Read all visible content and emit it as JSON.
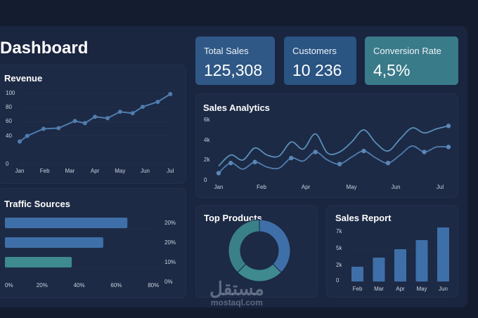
{
  "header": {
    "title": "Dashboard"
  },
  "kpis": [
    {
      "label": "Total Sales",
      "value": "125,308",
      "color": "#2f5886"
    },
    {
      "label": "Customers",
      "value": "10 236",
      "color": "#2a5482"
    },
    {
      "label": "Conversion Rate",
      "value": "4,5%",
      "color": "#3a7b8a"
    }
  ],
  "revenue": {
    "title": "Revenue",
    "chart_data": {
      "type": "line",
      "yticks": [
        "100",
        "80",
        "60",
        "40",
        "0"
      ],
      "xticks": [
        "Jan",
        "Feb",
        "Mar",
        "Apr",
        "May",
        "Jun",
        "Jul"
      ],
      "ylim": [
        0,
        100
      ],
      "x": [
        0,
        0.3,
        0.95,
        1.55,
        2.2,
        2.6,
        3.0,
        3.5,
        4.0,
        4.5,
        4.9,
        5.5,
        6.0
      ],
      "values": [
        32,
        40,
        50,
        51,
        61,
        58,
        67,
        65,
        74,
        72,
        81,
        88,
        99
      ],
      "color": "#4f7db0"
    }
  },
  "analytics": {
    "title": "Sales Analytics",
    "chart_data": {
      "type": "line",
      "yticks": [
        "6k",
        "4k",
        "2k",
        "0"
      ],
      "xticks": [
        "Jan",
        "Feb",
        "Apr",
        "May",
        "Jun",
        "Jul"
      ],
      "ylim": [
        0,
        6
      ],
      "series": [
        {
          "values": [
            1.5,
            2.6,
            2.1,
            3.3,
            2.6,
            2.5,
            3.9,
            3.2,
            4.7,
            2.8,
            2.9,
            3.9,
            5.1,
            3.8,
            3.0,
            4.2,
            5.3,
            4.8,
            5.2,
            5.5
          ],
          "color": "#5a8fb8"
        },
        {
          "values": [
            0.8,
            1.8,
            1.2,
            1.9,
            1.4,
            1.3,
            2.3,
            2.0,
            2.9,
            2.1,
            1.7,
            2.4,
            3.0,
            2.3,
            1.8,
            2.6,
            3.5,
            2.9,
            3.4,
            3.4
          ],
          "color": "#4f7db0"
        }
      ]
    }
  },
  "traffic": {
    "title": "Traffic Sources",
    "chart_data": {
      "type": "bar",
      "orientation": "horizontal",
      "values": [
        66,
        53,
        36
      ],
      "colors": [
        "#3f6fa8",
        "#3f6fa8",
        "#3e8a8e"
      ],
      "right_labels": [
        "20%",
        "20%",
        "10%",
        "0%"
      ],
      "xticks": [
        "0%",
        "20%",
        "40%",
        "60%",
        "80%"
      ],
      "xlim": [
        0,
        80
      ]
    }
  },
  "products": {
    "title": "Top Products",
    "chart_data": {
      "type": "pie",
      "donut": true,
      "values": [
        37.5,
        25,
        37.5
      ],
      "colors": [
        "#3f6fa8",
        "#3e8a8e",
        "#3a8088"
      ]
    }
  },
  "report": {
    "title": "Sales Report",
    "chart_data": {
      "type": "bar",
      "categories": [
        "Feb",
        "Mar",
        "Apr",
        "May",
        "Jun"
      ],
      "values": [
        2.1,
        3.4,
        4.6,
        5.9,
        7.7
      ],
      "yticks": [
        "7k",
        "5k",
        "2k",
        "0"
      ],
      "color": "#3f6fa8"
    }
  },
  "watermark": {
    "arabic": "مستقل",
    "latin": "mostaql.com"
  }
}
